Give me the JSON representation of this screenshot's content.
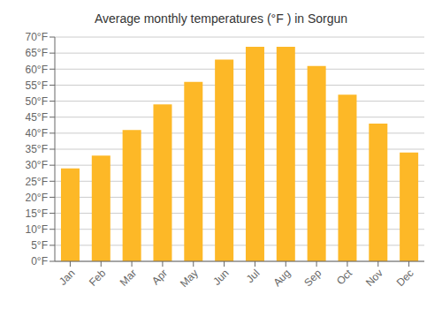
{
  "chart_data": {
    "type": "bar",
    "title": "Average monthly temperatures (°F ) in Sorgun",
    "categories": [
      "Jan",
      "Feb",
      "Mar",
      "Apr",
      "May",
      "Jun",
      "Jul",
      "Aug",
      "Sep",
      "Oct",
      "Nov",
      "Dec"
    ],
    "values": [
      29,
      33,
      41,
      49,
      56,
      63,
      67,
      67,
      61,
      52,
      43,
      34
    ],
    "color": "#FDB827",
    "ylim": [
      0,
      70
    ],
    "yticks": [
      {
        "value": 0,
        "label": "0°F"
      },
      {
        "value": 5,
        "label": "5°F"
      },
      {
        "value": 10,
        "label": "10°F"
      },
      {
        "value": 15,
        "label": "15°F"
      },
      {
        "value": 20,
        "label": "20°F"
      },
      {
        "value": 25,
        "label": "25°F"
      },
      {
        "value": 30,
        "label": "30°F"
      },
      {
        "value": 35,
        "label": "35°F"
      },
      {
        "value": 40,
        "label": "40°F"
      },
      {
        "value": 45,
        "label": "45°F"
      },
      {
        "value": 50,
        "label": "50°F"
      },
      {
        "value": 55,
        "label": "55°F"
      },
      {
        "value": 60,
        "label": "60°F"
      },
      {
        "value": 65,
        "label": "65°F"
      },
      {
        "value": 70,
        "label": "70°F"
      }
    ],
    "grid": true
  }
}
